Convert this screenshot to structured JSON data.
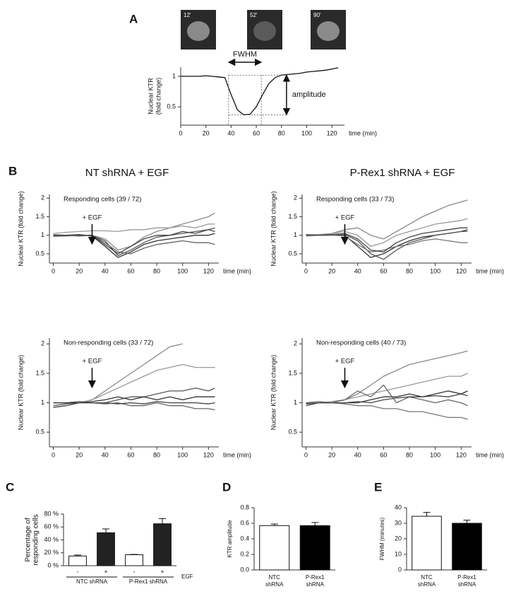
{
  "chart_data": [
    {
      "type": "line",
      "panel": "A",
      "thumbnails": [
        "12'",
        "52'",
        "90'"
      ],
      "ylabel": [
        "Nuclear KTR",
        "(fold change)"
      ],
      "xlabel": "time (min)",
      "annotations": {
        "fwhm": "FWHM",
        "amplitude": "amplitude"
      },
      "fwhm_x": [
        38,
        64
      ],
      "amplitude_y": [
        0.37,
        1.02
      ],
      "amplitude_x": 84,
      "x": [
        0,
        5,
        10,
        15,
        20,
        25,
        30,
        35,
        40,
        45,
        50,
        55,
        60,
        65,
        70,
        75,
        80,
        85,
        90,
        95,
        100,
        105,
        110,
        115,
        120,
        125
      ],
      "series": [
        {
          "color": "#111111",
          "values": [
            1.0,
            1.0,
            1.0,
            1.0,
            1.01,
            1.0,
            0.99,
            0.98,
            0.7,
            0.45,
            0.37,
            0.38,
            0.5,
            0.7,
            0.88,
            0.98,
            1.02,
            1.03,
            1.04,
            1.05,
            1.07,
            1.08,
            1.09,
            1.1,
            1.12,
            1.14
          ]
        }
      ],
      "xlim": [
        0,
        130
      ],
      "xticks": [
        0,
        20,
        40,
        60,
        80,
        100,
        120
      ],
      "ylim": [
        0.2,
        1.15
      ],
      "yticks": [
        0.5,
        1
      ]
    },
    {
      "type": "line",
      "panel": "B",
      "title": "NT shRNA + EGF",
      "subtitle": "Responding cells (39 / 72)",
      "marker_label": "+ EGF",
      "egf_time": 30,
      "ylabel": "Nuclear KTR (fold change)",
      "xlabel": "time (min)",
      "x": [
        0,
        10,
        20,
        30,
        40,
        50,
        60,
        70,
        80,
        90,
        100,
        110,
        120,
        125
      ],
      "series": [
        {
          "color": "#555555",
          "values": [
            0.98,
            1.0,
            1.0,
            1.0,
            0.85,
            0.45,
            0.6,
            0.8,
            0.95,
            1.0,
            1.05,
            1.1,
            1.15,
            1.2
          ]
        },
        {
          "color": "#333333",
          "values": [
            1.0,
            1.0,
            1.02,
            0.98,
            0.7,
            0.4,
            0.55,
            0.75,
            0.85,
            0.9,
            0.95,
            1.0,
            1.0,
            1.05
          ]
        },
        {
          "color": "#888888",
          "values": [
            1.02,
            1.0,
            1.0,
            1.0,
            0.9,
            0.6,
            0.7,
            0.95,
            1.1,
            1.2,
            1.3,
            1.4,
            1.5,
            1.6
          ]
        },
        {
          "color": "#666666",
          "values": [
            0.97,
            0.98,
            1.0,
            1.0,
            0.8,
            0.55,
            0.5,
            0.65,
            0.75,
            0.8,
            0.85,
            0.8,
            0.8,
            0.75
          ]
        },
        {
          "color": "#999999",
          "values": [
            1.05,
            1.08,
            1.1,
            1.12,
            1.12,
            1.1,
            1.15,
            1.15,
            1.2,
            1.2,
            1.25,
            1.2,
            1.3,
            1.3
          ]
        },
        {
          "color": "#444444",
          "values": [
            1.0,
            1.0,
            0.98,
            1.0,
            0.75,
            0.5,
            0.7,
            0.9,
            1.0,
            1.0,
            1.1,
            1.05,
            1.15,
            1.1
          ]
        }
      ],
      "xlim": [
        -3,
        128
      ],
      "xticks": [
        0,
        20,
        40,
        60,
        80,
        100,
        120
      ],
      "ylim": [
        0.25,
        2.1
      ],
      "yticks": [
        0.5,
        1,
        1.5,
        2
      ]
    },
    {
      "type": "line",
      "title": "P-Rex1 shRNA + EGF",
      "subtitle": "Responding cells (33 / 73)",
      "marker_label": "+ EGF",
      "egf_time": 30,
      "ylabel": "Nuclear KTR (fold change)",
      "xlabel": "time (min)",
      "x": [
        0,
        10,
        20,
        30,
        40,
        50,
        60,
        70,
        80,
        90,
        100,
        110,
        120,
        125
      ],
      "series": [
        {
          "color": "#888888",
          "values": [
            1.0,
            1.0,
            1.05,
            1.15,
            1.2,
            1.0,
            0.9,
            1.1,
            1.3,
            1.5,
            1.65,
            1.8,
            1.9,
            1.95
          ]
        },
        {
          "color": "#333333",
          "values": [
            1.0,
            1.0,
            1.0,
            1.0,
            0.7,
            0.4,
            0.5,
            0.7,
            0.85,
            0.95,
            1.0,
            1.05,
            1.1,
            1.15
          ]
        },
        {
          "color": "#555555",
          "values": [
            0.98,
            1.0,
            1.0,
            1.02,
            0.85,
            0.5,
            0.35,
            0.6,
            0.8,
            0.9,
            1.0,
            1.05,
            1.1,
            1.1
          ]
        },
        {
          "color": "#999999",
          "values": [
            1.0,
            1.02,
            1.05,
            1.1,
            1.0,
            0.7,
            0.8,
            1.0,
            1.1,
            1.2,
            1.3,
            1.35,
            1.4,
            1.45
          ]
        },
        {
          "color": "#777777",
          "values": [
            1.0,
            1.0,
            1.0,
            0.98,
            0.75,
            0.55,
            0.6,
            0.7,
            0.75,
            0.85,
            0.9,
            0.85,
            0.8,
            0.8
          ]
        },
        {
          "color": "#444444",
          "values": [
            1.02,
            1.0,
            1.02,
            1.05,
            0.9,
            0.6,
            0.55,
            0.8,
            0.95,
            1.05,
            1.1,
            1.15,
            1.2,
            1.2
          ]
        }
      ],
      "xlim": [
        -3,
        128
      ],
      "xticks": [
        0,
        20,
        40,
        60,
        80,
        100,
        120
      ],
      "ylim": [
        0.25,
        2.1
      ],
      "yticks": [
        0.5,
        1,
        1.5,
        2
      ]
    },
    {
      "type": "line",
      "subtitle": "Non-responding cells (33 / 72)",
      "marker_label": "+ EGF",
      "egf_time": 30,
      "ylabel": "Nuclear KTR (fold change)",
      "xlabel": "time (min)",
      "x": [
        0,
        10,
        20,
        30,
        40,
        50,
        60,
        70,
        80,
        90,
        100,
        110,
        120,
        125
      ],
      "series": [
        {
          "color": "#888888",
          "values": [
            0.95,
            0.98,
            1.0,
            1.05,
            1.2,
            1.35,
            1.5,
            1.65,
            1.8,
            1.95,
            2.0,
            null,
            null,
            null
          ]
        },
        {
          "color": "#999999",
          "values": [
            1.0,
            1.0,
            1.0,
            1.05,
            1.15,
            1.25,
            1.35,
            1.45,
            1.55,
            1.6,
            1.65,
            1.6,
            1.6,
            1.6
          ]
        },
        {
          "color": "#555555",
          "values": [
            1.0,
            1.0,
            1.02,
            1.0,
            1.0,
            1.05,
            1.1,
            1.1,
            1.15,
            1.2,
            1.2,
            1.25,
            1.2,
            1.25
          ]
        },
        {
          "color": "#666666",
          "values": [
            0.95,
            0.98,
            1.0,
            1.0,
            0.98,
            1.0,
            0.95,
            0.95,
            1.0,
            0.95,
            0.95,
            0.9,
            0.9,
            0.88
          ]
        },
        {
          "color": "#333333",
          "values": [
            1.0,
            1.0,
            1.0,
            1.02,
            1.05,
            1.1,
            1.05,
            1.1,
            1.05,
            1.1,
            1.05,
            1.1,
            1.1,
            1.1
          ]
        },
        {
          "color": "#444444",
          "values": [
            0.92,
            0.95,
            1.0,
            1.0,
            1.0,
            0.98,
            1.0,
            0.98,
            1.02,
            1.0,
            1.0,
            1.0,
            0.98,
            1.0
          ]
        }
      ],
      "xlim": [
        -3,
        128
      ],
      "xticks": [
        0,
        20,
        40,
        60,
        80,
        100,
        120
      ],
      "ylim": [
        0.25,
        2.1
      ],
      "yticks": [
        0.5,
        1,
        1.5,
        2
      ]
    },
    {
      "type": "line",
      "subtitle": "Non-responding cells (40 / 73)",
      "marker_label": "+ EGF",
      "egf_time": 30,
      "ylabel": "Nuclear KTR (fold change)",
      "xlabel": "time (min)",
      "x": [
        0,
        10,
        20,
        30,
        40,
        50,
        60,
        70,
        80,
        90,
        100,
        110,
        120,
        125
      ],
      "series": [
        {
          "color": "#888888",
          "values": [
            1.0,
            1.0,
            1.02,
            1.05,
            1.15,
            1.3,
            1.45,
            1.55,
            1.65,
            1.7,
            1.75,
            1.8,
            1.85,
            1.88
          ]
        },
        {
          "color": "#999999",
          "values": [
            1.0,
            1.0,
            1.0,
            1.05,
            1.1,
            1.15,
            1.2,
            1.25,
            1.3,
            1.35,
            1.4,
            1.45,
            1.45,
            1.5
          ]
        },
        {
          "color": "#333333",
          "values": [
            0.98,
            1.0,
            1.0,
            1.0,
            1.0,
            1.05,
            1.1,
            1.1,
            1.15,
            1.1,
            1.15,
            1.2,
            1.15,
            1.2
          ]
        },
        {
          "color": "#777777",
          "values": [
            1.0,
            1.0,
            1.0,
            0.98,
            0.95,
            0.95,
            0.9,
            0.9,
            0.85,
            0.85,
            0.8,
            0.75,
            0.75,
            0.72
          ]
        },
        {
          "color": "#666666",
          "values": [
            1.0,
            1.02,
            1.0,
            1.05,
            1.2,
            1.1,
            1.3,
            1.0,
            1.1,
            1.05,
            1.0,
            1.05,
            1.0,
            0.95
          ]
        },
        {
          "color": "#444444",
          "values": [
            0.95,
            1.0,
            1.0,
            1.0,
            1.02,
            1.0,
            1.05,
            1.08,
            1.1,
            1.1,
            1.12,
            1.1,
            1.15,
            1.12
          ]
        }
      ],
      "xlim": [
        -3,
        128
      ],
      "xticks": [
        0,
        20,
        40,
        60,
        80,
        100,
        120
      ],
      "ylim": [
        0.25,
        2.1
      ],
      "yticks": [
        0.5,
        1,
        1.5,
        2
      ]
    },
    {
      "type": "bar",
      "panel": "C",
      "ylabel": [
        "Percentage of",
        "responding cells"
      ],
      "categories": [
        "-",
        "+",
        "-",
        "+"
      ],
      "groups": [
        "NTC shRNA",
        "P-Rex1 shRNA"
      ],
      "factor_label": "EGF",
      "values": [
        15,
        51,
        17,
        65
      ],
      "errors": [
        1.5,
        6,
        0.5,
        8
      ],
      "colors": [
        "#ffffff",
        "#222222",
        "#ffffff",
        "#222222"
      ],
      "ylim": [
        0,
        80
      ],
      "yticks": [
        {
          "value": 0,
          "label": "0 %"
        },
        {
          "value": 20,
          "label": "20 %"
        },
        {
          "value": 40,
          "label": "40 %"
        },
        {
          "value": 60,
          "label": "60 %"
        },
        {
          "value": 80,
          "label": "80 %"
        }
      ]
    },
    {
      "type": "bar",
      "panel": "D",
      "ylabel": [
        "KTR amplitude"
      ],
      "categories": [
        [
          "NTC",
          "shRNA"
        ],
        [
          "P-Rex1",
          "shRNA"
        ]
      ],
      "values": [
        0.57,
        0.57
      ],
      "errors": [
        0.02,
        0.04
      ],
      "colors": [
        "#ffffff",
        "#000000"
      ],
      "ylim": [
        0,
        0.8
      ],
      "yticks": [
        {
          "value": 0,
          "label": "0.0"
        },
        0.2,
        0.4,
        0.6,
        0.8
      ]
    },
    {
      "type": "bar",
      "panel": "E",
      "ylabel": [
        "FWHM (minutes)"
      ],
      "categories": [
        [
          "NTC",
          "shRNA"
        ],
        [
          "P-Rex1",
          "shRNA"
        ]
      ],
      "values": [
        34.5,
        30
      ],
      "errors": [
        2.5,
        2
      ],
      "colors": [
        "#ffffff",
        "#000000"
      ],
      "ylim": [
        0,
        40
      ],
      "yticks": [
        0,
        10,
        20,
        30,
        40
      ]
    }
  ]
}
